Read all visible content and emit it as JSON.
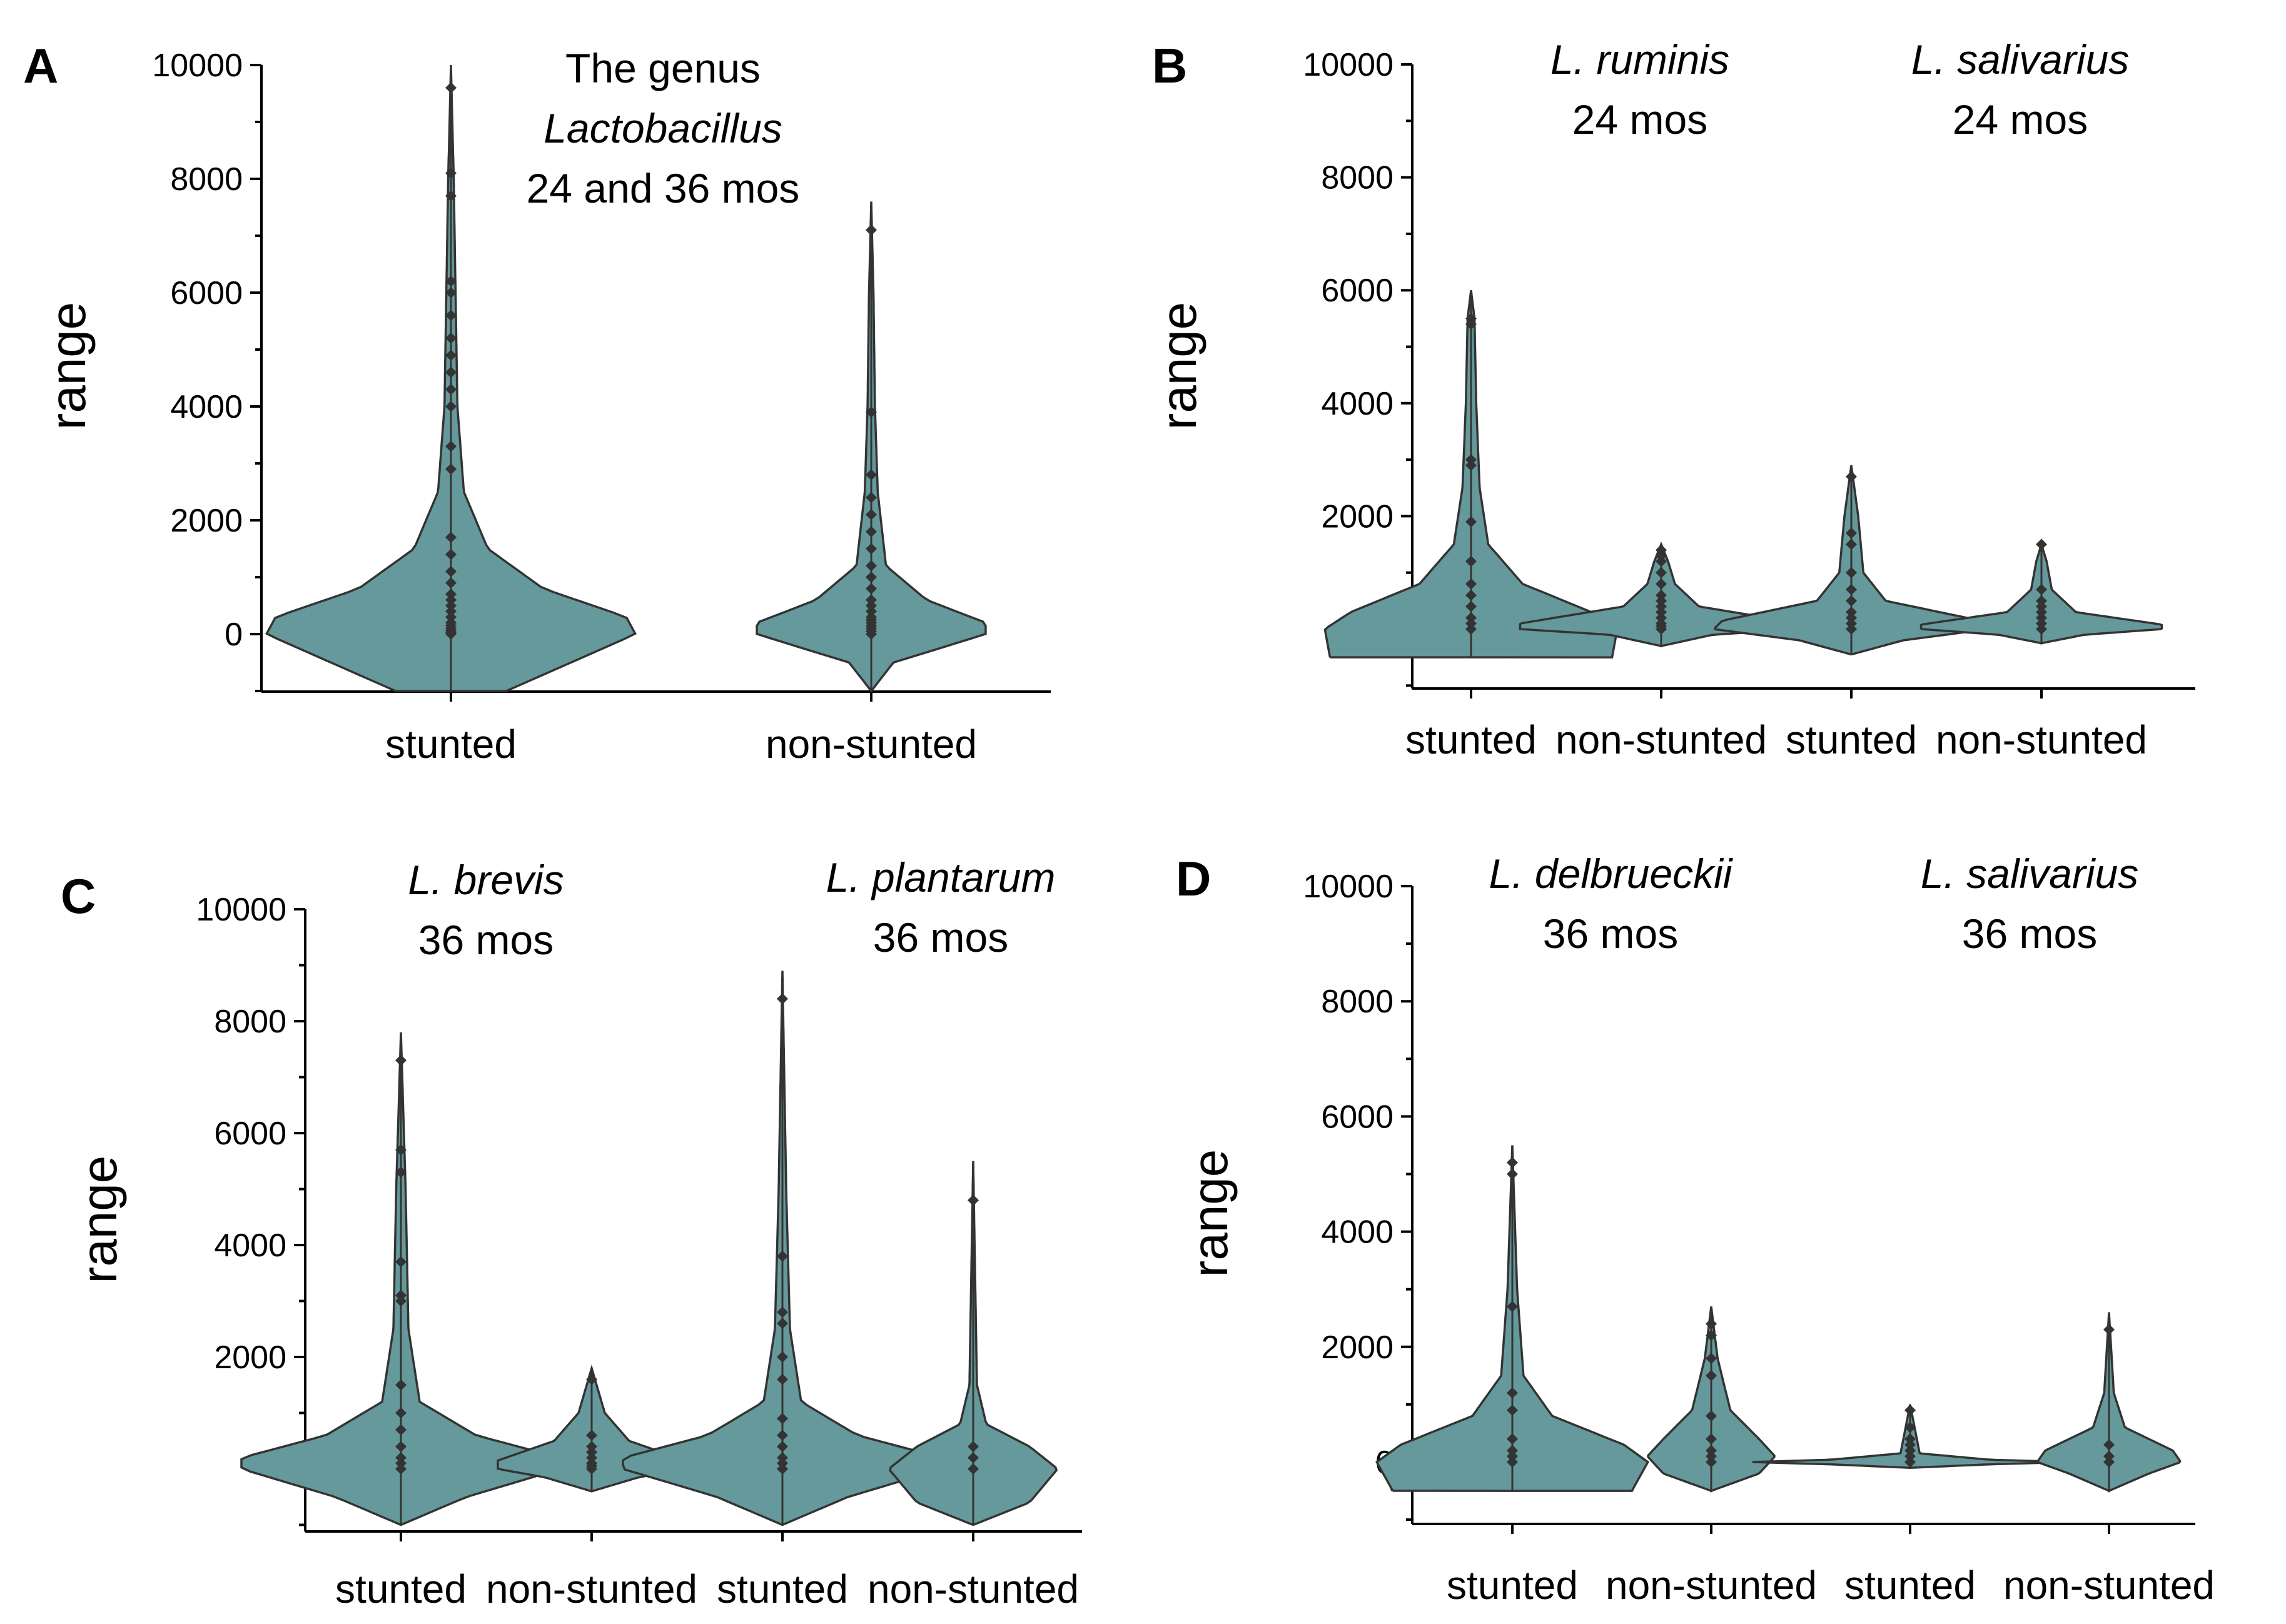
{
  "colors": {
    "violin_fill": "#66999b",
    "violin_stroke": "#333333",
    "axis": "#000000",
    "point": "#333333"
  },
  "chart_data": [
    {
      "panel": "A",
      "type": "violin",
      "ylabel": "range",
      "ylim": [
        -1000,
        10000
      ],
      "yticks": [
        "0",
        "2000",
        "4000",
        "6000",
        "8000",
        "10000"
      ],
      "annotations": [
        {
          "lines": [
            "The genus",
            "Lactobacillus",
            "24 and 36 mos"
          ],
          "italic": [
            false,
            true,
            false
          ]
        }
      ],
      "categories": [
        "stunted",
        "non-stunted"
      ],
      "series": [
        {
          "category": "stunted",
          "min": -1000,
          "max": 10000,
          "profile": [
            [
              -1000,
              0.3
            ],
            [
              0,
              1.0
            ],
            [
              300,
              0.95
            ],
            [
              800,
              0.5
            ],
            [
              1500,
              0.2
            ],
            [
              2500,
              0.07
            ],
            [
              4000,
              0.035
            ],
            [
              6000,
              0.025
            ],
            [
              8000,
              0.015
            ],
            [
              10000,
              0.0
            ]
          ],
          "points": [
            9600,
            8100,
            7700,
            6200,
            6000,
            5600,
            5200,
            4900,
            4600,
            4300,
            4000,
            3300,
            2900,
            1700,
            1400,
            1100,
            900,
            700,
            600,
            500,
            400,
            300,
            200,
            150,
            100,
            60,
            30,
            0
          ]
        },
        {
          "category": "non-stunted",
          "min": -1000,
          "max": 7600,
          "profile": [
            [
              -1000,
              0.0
            ],
            [
              -500,
              0.12
            ],
            [
              0,
              0.62
            ],
            [
              200,
              0.62
            ],
            [
              600,
              0.3
            ],
            [
              1200,
              0.08
            ],
            [
              2500,
              0.035
            ],
            [
              4000,
              0.02
            ],
            [
              6000,
              0.012
            ],
            [
              7600,
              0.0
            ]
          ],
          "points": [
            7100,
            3900,
            2800,
            2400,
            2100,
            1800,
            1500,
            1200,
            1000,
            800,
            600,
            500,
            400,
            300,
            250,
            200,
            150,
            100,
            50,
            0
          ]
        }
      ]
    },
    {
      "panel": "B",
      "type": "violin",
      "ylabel": "range",
      "ylim": [
        -1000,
        10000
      ],
      "yticks": [
        "0",
        "2000",
        "4000",
        "6000",
        "8000",
        "10000"
      ],
      "annotations": [
        {
          "lines": [
            "L. ruminis",
            "24 mos"
          ],
          "italic": [
            true,
            false
          ]
        },
        {
          "lines": [
            "L.  salivarius",
            "24 mos"
          ],
          "italic": [
            true,
            false
          ]
        }
      ],
      "categories": [
        "stunted",
        "non-stunted",
        "stunted",
        "non-stunted"
      ],
      "series": [
        {
          "category": "stunted",
          "min": -500,
          "max": 6000,
          "profile": [
            [
              -500,
              0.82
            ],
            [
              0,
              0.85
            ],
            [
              300,
              0.7
            ],
            [
              800,
              0.3
            ],
            [
              1500,
              0.1
            ],
            [
              2500,
              0.05
            ],
            [
              4000,
              0.03
            ],
            [
              5500,
              0.02
            ],
            [
              6000,
              0.0
            ]
          ],
          "points": [
            5500,
            5400,
            3000,
            2900,
            1900,
            1200,
            800,
            600,
            400,
            200,
            100,
            0
          ]
        },
        {
          "category": "non-stunted",
          "min": -300,
          "max": 1500,
          "profile": [
            [
              -300,
              0.0
            ],
            [
              -100,
              0.3
            ],
            [
              0,
              0.82
            ],
            [
              100,
              0.82
            ],
            [
              400,
              0.22
            ],
            [
              800,
              0.08
            ],
            [
              1200,
              0.04
            ],
            [
              1500,
              0.0
            ]
          ],
          "points": [
            1400,
            1300,
            1200,
            1000,
            800,
            600,
            500,
            400,
            300,
            200,
            100,
            50,
            0
          ]
        },
        {
          "category": "stunted",
          "min": -450,
          "max": 2900,
          "profile": [
            [
              -450,
              0.0
            ],
            [
              -200,
              0.3
            ],
            [
              0,
              0.8
            ],
            [
              150,
              0.75
            ],
            [
              500,
              0.2
            ],
            [
              1000,
              0.07
            ],
            [
              2000,
              0.04
            ],
            [
              2900,
              0.0
            ]
          ],
          "points": [
            2700,
            1700,
            1500,
            1000,
            700,
            500,
            300,
            200,
            100,
            0
          ]
        },
        {
          "category": "non-stunted",
          "min": -250,
          "max": 1500,
          "profile": [
            [
              -250,
              0.0
            ],
            [
              -100,
              0.25
            ],
            [
              0,
              0.7
            ],
            [
              80,
              0.7
            ],
            [
              300,
              0.2
            ],
            [
              700,
              0.06
            ],
            [
              1200,
              0.03
            ],
            [
              1500,
              0.0
            ]
          ],
          "points": [
            1500,
            700,
            500,
            400,
            300,
            200,
            100,
            0
          ]
        }
      ]
    },
    {
      "panel": "C",
      "type": "violin",
      "ylabel": "range",
      "ylim": [
        -1000,
        10000
      ],
      "yticks": [
        "0",
        "2000",
        "4000",
        "6000",
        "8000",
        "10000"
      ],
      "annotations": [
        {
          "lines": [
            "L.  brevis",
            "36 mos"
          ],
          "italic": [
            true,
            false
          ]
        },
        {
          "lines": [
            "L. plantarum",
            "36 mos"
          ],
          "italic": [
            true,
            false
          ]
        }
      ],
      "categories": [
        "stunted",
        "non-stunted",
        "stunted",
        "non-stunted"
      ],
      "series": [
        {
          "category": "stunted",
          "min": -1000,
          "max": 7800,
          "profile": [
            [
              -1000,
              0.0
            ],
            [
              -500,
              0.35
            ],
            [
              0,
              0.85
            ],
            [
              200,
              0.85
            ],
            [
              600,
              0.4
            ],
            [
              1200,
              0.1
            ],
            [
              2500,
              0.04
            ],
            [
              5000,
              0.025
            ],
            [
              7800,
              0.0
            ]
          ],
          "points": [
            7300,
            5700,
            5300,
            3700,
            3100,
            3000,
            1500,
            1000,
            700,
            400,
            200,
            100,
            0
          ]
        },
        {
          "category": "non-stunted",
          "min": -400,
          "max": 1800,
          "profile": [
            [
              -400,
              0.0
            ],
            [
              -150,
              0.25
            ],
            [
              0,
              0.5
            ],
            [
              150,
              0.5
            ],
            [
              500,
              0.2
            ],
            [
              1000,
              0.07
            ],
            [
              1800,
              0.0
            ]
          ],
          "points": [
            1600,
            600,
            400,
            300,
            200,
            100,
            50,
            0
          ]
        },
        {
          "category": "stunted",
          "min": -1000,
          "max": 8900,
          "profile": [
            [
              -1000,
              0.0
            ],
            [
              -500,
              0.35
            ],
            [
              0,
              0.85
            ],
            [
              200,
              0.85
            ],
            [
              600,
              0.4
            ],
            [
              1200,
              0.1
            ],
            [
              2500,
              0.04
            ],
            [
              5000,
              0.02
            ],
            [
              8900,
              0.0
            ]
          ],
          "points": [
            8400,
            3800,
            2800,
            2600,
            2000,
            1600,
            900,
            600,
            400,
            200,
            100,
            0
          ]
        },
        {
          "category": "non-stunted",
          "min": -1000,
          "max": 5500,
          "profile": [
            [
              -1000,
              0.0
            ],
            [
              -600,
              0.3
            ],
            [
              0,
              0.45
            ],
            [
              400,
              0.3
            ],
            [
              800,
              0.07
            ],
            [
              1500,
              0.02
            ],
            [
              5500,
              0.0
            ]
          ],
          "points": [
            4800,
            400,
            200,
            0
          ]
        }
      ]
    },
    {
      "panel": "D",
      "type": "violin",
      "ylabel": "range",
      "ylim": [
        -1000,
        10000
      ],
      "yticks": [
        "0",
        "2000",
        "4000",
        "6000",
        "8000",
        "10000"
      ],
      "annotations": [
        {
          "lines": [
            "L. delbrueckii",
            "36 mos"
          ],
          "italic": [
            true,
            false
          ]
        },
        {
          "lines": [
            "L. salivarius",
            "36 mos"
          ],
          "italic": [
            true,
            false
          ]
        }
      ],
      "categories": [
        "stunted",
        "non-stunted",
        "stunted",
        "non-stunted"
      ],
      "series": [
        {
          "category": "stunted",
          "min": -500,
          "max": 5500,
          "profile": [
            [
              -500,
              0.75
            ],
            [
              0,
              0.85
            ],
            [
              300,
              0.7
            ],
            [
              800,
              0.25
            ],
            [
              1500,
              0.07
            ],
            [
              3000,
              0.03
            ],
            [
              5500,
              0.0
            ]
          ],
          "points": [
            5200,
            5000,
            2700,
            1200,
            900,
            400,
            200,
            100,
            0
          ]
        },
        {
          "category": "non-stunted",
          "min": -500,
          "max": 2700,
          "profile": [
            [
              -500,
              0.0
            ],
            [
              -200,
              0.3
            ],
            [
              100,
              0.4
            ],
            [
              400,
              0.3
            ],
            [
              900,
              0.12
            ],
            [
              1800,
              0.04
            ],
            [
              2700,
              0.0
            ]
          ],
          "points": [
            2400,
            2200,
            1800,
            1500,
            800,
            400,
            200,
            100,
            0
          ]
        },
        {
          "category": "stunted",
          "min": -100,
          "max": 1000,
          "profile": [
            [
              -100,
              0.0
            ],
            [
              -40,
              0.5
            ],
            [
              0,
              1.0
            ],
            [
              40,
              0.5
            ],
            [
              150,
              0.06
            ],
            [
              1000,
              0.0
            ]
          ],
          "points": [
            900,
            600,
            400,
            300,
            200,
            100,
            0
          ]
        },
        {
          "category": "non-stunted",
          "min": -500,
          "max": 2600,
          "profile": [
            [
              -500,
              0.0
            ],
            [
              -200,
              0.25
            ],
            [
              0,
              0.45
            ],
            [
              200,
              0.4
            ],
            [
              600,
              0.1
            ],
            [
              1200,
              0.03
            ],
            [
              2600,
              0.0
            ]
          ],
          "points": [
            2300,
            300,
            100,
            0
          ]
        }
      ]
    }
  ]
}
